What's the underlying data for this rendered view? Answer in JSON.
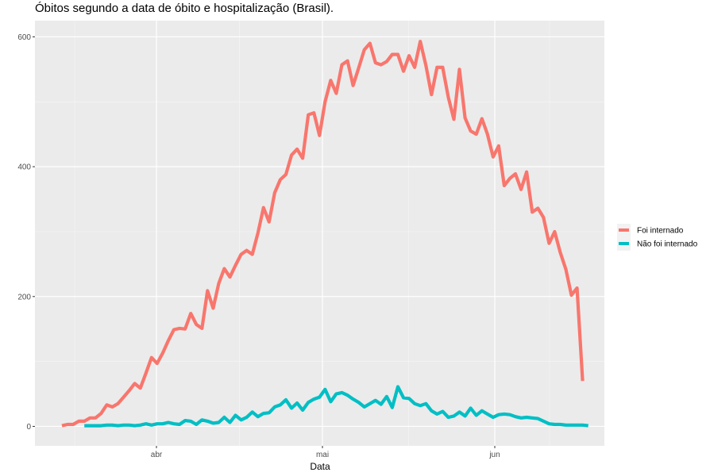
{
  "chart_data": {
    "type": "line",
    "title": "Óbitos segundo a data de óbito e hospitalização (Brasil).",
    "xlabel": "Data",
    "ylabel": "",
    "x_ticks": [
      "abr",
      "mai",
      "jun"
    ],
    "y_ticks": [
      0,
      200,
      400,
      600
    ],
    "ylim": [
      -30,
      625
    ],
    "grid": true,
    "legend_position": "right",
    "series": [
      {
        "name": "Foi internado",
        "color": "#F8766D",
        "start_index": 0,
        "values": [
          1,
          3,
          3,
          8,
          8,
          13,
          13,
          20,
          33,
          30,
          35,
          45,
          55,
          66,
          59,
          82,
          106,
          97,
          113,
          132,
          149,
          151,
          150,
          174,
          157,
          151,
          209,
          182,
          220,
          243,
          230,
          248,
          265,
          271,
          265,
          298,
          337,
          315,
          360,
          380,
          388,
          418,
          427,
          413,
          480,
          483,
          448,
          500,
          533,
          513,
          557,
          563,
          525,
          552,
          580,
          590,
          560,
          557,
          562,
          573,
          573,
          547,
          571,
          553,
          593,
          556,
          511,
          553,
          553,
          507,
          473,
          550,
          475,
          455,
          450,
          474,
          450,
          415,
          432,
          371,
          382,
          389,
          365,
          392,
          330,
          336,
          322,
          282,
          300,
          268,
          242,
          202,
          213,
          70
        ]
      },
      {
        "name": "Não foi internado",
        "color": "#00BFC4",
        "start_index": 4,
        "values": [
          1,
          1,
          1,
          1,
          2,
          2,
          1,
          2,
          2,
          1,
          2,
          4,
          2,
          4,
          4,
          6,
          4,
          3,
          9,
          8,
          3,
          10,
          8,
          5,
          6,
          14,
          6,
          17,
          10,
          14,
          22,
          15,
          20,
          21,
          30,
          33,
          41,
          28,
          36,
          25,
          37,
          42,
          45,
          57,
          38,
          50,
          52,
          48,
          42,
          37,
          30,
          35,
          40,
          34,
          46,
          29,
          61,
          44,
          43,
          35,
          32,
          35,
          24,
          19,
          23,
          14,
          16,
          22,
          16,
          28,
          17,
          24,
          19,
          14,
          18,
          19,
          18,
          15,
          13,
          14,
          13,
          12,
          8,
          4,
          3,
          3,
          2,
          2,
          2,
          2,
          1
        ]
      }
    ]
  }
}
